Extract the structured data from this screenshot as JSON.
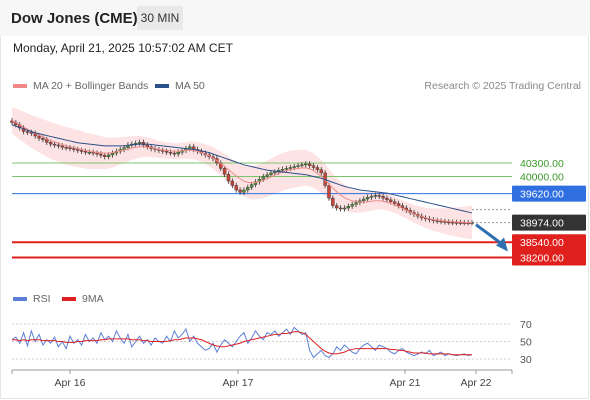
{
  "header": {
    "symbol": "Dow Jones (CME)",
    "timeframe": "30 MIN",
    "datetime": "Monday, April 21, 2025 10:57:02 AM CET"
  },
  "legend": {
    "ma20_label": "MA 20 + Bollinger Bands",
    "ma20_color": "#f08a8a",
    "ma50_label": "MA 50",
    "ma50_color": "#2b4f8a",
    "credit": "Research © 2025 Trading Central"
  },
  "rsi_legend": {
    "rsi_label": "RSI",
    "rsi_color": "#5b7fd6",
    "ma_label": "9MA",
    "ma_color": "#e02020"
  },
  "chart_data": [
    {
      "type": "candlestick",
      "title": "Dow Jones (CME) 30 MIN",
      "x_ticks": [
        "Apr 16",
        "Apr 17",
        "Apr 21",
        "Apr 22"
      ],
      "ylim": [
        37700,
        41700
      ],
      "levels": [
        {
          "label": "40300.00",
          "value": 40300,
          "kind": "resistance",
          "color": "#7cc46b"
        },
        {
          "label": "40000.00",
          "value": 40000,
          "kind": "resistance",
          "color": "#7cc46b"
        },
        {
          "label": "39620.00",
          "value": 39620,
          "kind": "pivot",
          "color": "#2f6fe0"
        },
        {
          "label": "38974.00",
          "value": 38974,
          "kind": "last",
          "color": "#333333"
        },
        {
          "label": "38540.00",
          "value": 38540,
          "kind": "support",
          "color": "#e0201c"
        },
        {
          "label": "38200.00",
          "value": 38200,
          "kind": "support",
          "color": "#e0201c"
        }
      ],
      "close": [
        41200,
        41150,
        41080,
        41000,
        40980,
        40960,
        40900,
        40850,
        40820,
        40760,
        40720,
        40700,
        40680,
        40650,
        40640,
        40620,
        40600,
        40580,
        40560,
        40540,
        40540,
        40520,
        40500,
        40470,
        40440,
        40480,
        40520,
        40560,
        40600,
        40640,
        40700,
        40720,
        40740,
        40760,
        40700,
        40660,
        40620,
        40600,
        40580,
        40560,
        40540,
        40520,
        40500,
        40540,
        40580,
        40620,
        40660,
        40600,
        40560,
        40520,
        40480,
        40440,
        40400,
        40300,
        40180,
        40050,
        39900,
        39800,
        39700,
        39650,
        39700,
        39760,
        39820,
        39880,
        39940,
        40000,
        40040,
        40080,
        40100,
        40140,
        40160,
        40180,
        40200,
        40220,
        40240,
        40260,
        40280,
        40240,
        40200,
        40150,
        40080,
        39800,
        39520,
        39350,
        39300,
        39280,
        39300,
        39340,
        39380,
        39420,
        39460,
        39500,
        39540,
        39560,
        39580,
        39560,
        39520,
        39480,
        39440,
        39400,
        39350,
        39300,
        39250,
        39200,
        39160,
        39120,
        39080,
        39060,
        39040,
        39020,
        39010,
        39000,
        38990,
        38985,
        38980,
        38978,
        38976,
        38975,
        38974,
        38974
      ],
      "ma20": [
        41250,
        41200,
        41150,
        41100,
        41050,
        41000,
        40960,
        40920,
        40880,
        40840,
        40800,
        40770,
        40740,
        40710,
        40680,
        40660,
        40640,
        40620,
        40600,
        40580,
        40560,
        40550,
        40540,
        40530,
        40520,
        40520,
        40530,
        40550,
        40570,
        40590,
        40610,
        40630,
        40650,
        40660,
        40660,
        40650,
        40640,
        40620,
        40600,
        40590,
        40580,
        40570,
        40560,
        40560,
        40570,
        40580,
        40590,
        40580,
        40560,
        40530,
        40500,
        40460,
        40410,
        40350,
        40290,
        40220,
        40150,
        40080,
        40010,
        39950,
        39900,
        39870,
        39860,
        39870,
        39890,
        39920,
        39950,
        39990,
        40030,
        40070,
        40100,
        40130,
        40150,
        40170,
        40180,
        40190,
        40190,
        40170,
        40130,
        40070,
        40000,
        39920,
        39830,
        39740,
        39660,
        39590,
        39530,
        39490,
        39460,
        39440,
        39430,
        39430,
        39440,
        39450,
        39460,
        39460,
        39450,
        39430,
        39400,
        39370,
        39330,
        39290,
        39250,
        39210,
        39170,
        39140,
        39110,
        39080,
        39060,
        39040,
        39030,
        39020,
        39010,
        39000,
        38995,
        38990,
        38985,
        38980,
        38978,
        38976
      ],
      "ma50": [
        41150,
        41120,
        41090,
        41060,
        41030,
        41000,
        40970,
        40950,
        40930,
        40910,
        40890,
        40870,
        40850,
        40830,
        40810,
        40790,
        40770,
        40750,
        40740,
        40730,
        40720,
        40710,
        40700,
        40690,
        40680,
        40680,
        40680,
        40680,
        40680,
        40680,
        40690,
        40700,
        40710,
        40720,
        40720,
        40720,
        40710,
        40700,
        40690,
        40680,
        40670,
        40660,
        40650,
        40640,
        40630,
        40620,
        40610,
        40600,
        40590,
        40570,
        40550,
        40530,
        40500,
        40470,
        40440,
        40410,
        40380,
        40350,
        40320,
        40290,
        40260,
        40240,
        40220,
        40200,
        40180,
        40160,
        40140,
        40130,
        40120,
        40110,
        40100,
        40090,
        40080,
        40070,
        40060,
        40050,
        40040,
        40020,
        40000,
        39980,
        39960,
        39930,
        39900,
        39870,
        39840,
        39810,
        39780,
        39760,
        39740,
        39720,
        39700,
        39690,
        39680,
        39670,
        39660,
        39650,
        39640,
        39630,
        39610,
        39590,
        39570,
        39550,
        39530,
        39510,
        39490,
        39470,
        39450,
        39430,
        39410,
        39390,
        39370,
        39350,
        39330,
        39310,
        39290,
        39270,
        39250,
        39230,
        39210,
        39190
      ],
      "forecast_arrow": {
        "from": 38974,
        "to": 38200,
        "color": "#2f6fb0"
      }
    },
    {
      "type": "line",
      "title": "RSI",
      "ylim": [
        20,
        80
      ],
      "y_ticks": [
        70,
        50,
        30
      ],
      "series": [
        {
          "name": "RSI",
          "color": "#5b7fd6",
          "values": [
            52,
            55,
            48,
            60,
            45,
            62,
            50,
            58,
            46,
            52,
            48,
            55,
            44,
            50,
            42,
            56,
            48,
            52,
            46,
            58,
            50,
            54,
            48,
            60,
            52,
            56,
            50,
            62,
            54,
            48,
            58,
            44,
            50,
            56,
            48,
            52,
            46,
            54,
            50,
            48,
            56,
            50,
            62,
            54,
            58,
            64,
            50,
            56,
            48,
            44,
            40,
            42,
            48,
            38,
            46,
            52,
            48,
            44,
            50,
            56,
            60,
            48,
            54,
            62,
            56,
            52,
            60,
            58,
            62,
            56,
            60,
            64,
            58,
            66,
            62,
            58,
            60,
            40,
            32,
            36,
            40,
            34,
            32,
            36,
            44,
            40,
            46,
            42,
            38,
            36,
            42,
            46,
            48,
            44,
            40,
            46,
            44,
            42,
            38,
            36,
            40,
            42,
            38,
            36,
            34,
            36,
            38,
            36,
            40,
            34,
            36,
            38,
            34,
            36,
            35,
            34,
            35,
            36,
            34,
            35
          ]
        },
        {
          "name": "9MA",
          "color": "#e02020",
          "values": [
            52,
            52,
            51,
            52,
            51,
            52,
            52,
            52,
            51,
            51,
            51,
            51,
            50,
            50,
            49,
            49,
            49,
            50,
            50,
            51,
            51,
            51,
            51,
            52,
            52,
            53,
            53,
            53,
            53,
            53,
            53,
            52,
            52,
            52,
            51,
            51,
            50,
            50,
            50,
            50,
            50,
            51,
            52,
            52,
            53,
            54,
            54,
            54,
            53,
            52,
            50,
            48,
            46,
            45,
            44,
            44,
            45,
            46,
            47,
            48,
            50,
            51,
            52,
            53,
            54,
            55,
            56,
            57,
            58,
            58,
            59,
            59,
            60,
            61,
            61,
            60,
            58,
            54,
            50,
            46,
            42,
            39,
            37,
            36,
            36,
            37,
            38,
            40,
            41,
            42,
            42,
            42,
            42,
            42,
            42,
            42,
            42,
            42,
            41,
            41,
            40,
            40,
            39,
            38,
            37,
            37,
            37,
            37,
            36,
            36,
            36,
            36,
            36,
            36,
            35,
            35,
            35,
            35,
            35,
            35
          ]
        }
      ]
    }
  ]
}
